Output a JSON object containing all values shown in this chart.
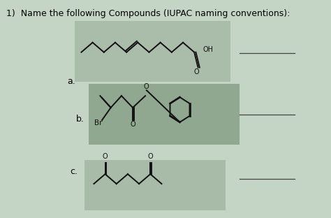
{
  "title": "1)  Name the following Compounds (IUPAC naming conventions):",
  "title_fontsize": 9,
  "bg_color": "#c5d5c5",
  "panel_a_color": "#aabcaa",
  "panel_b_color": "#8fa88f",
  "panel_c_color": "#a8baa8",
  "label_a": "a.",
  "label_b": "b.",
  "label_c": "c.",
  "bond_color": "#111111",
  "lw": 1.4
}
